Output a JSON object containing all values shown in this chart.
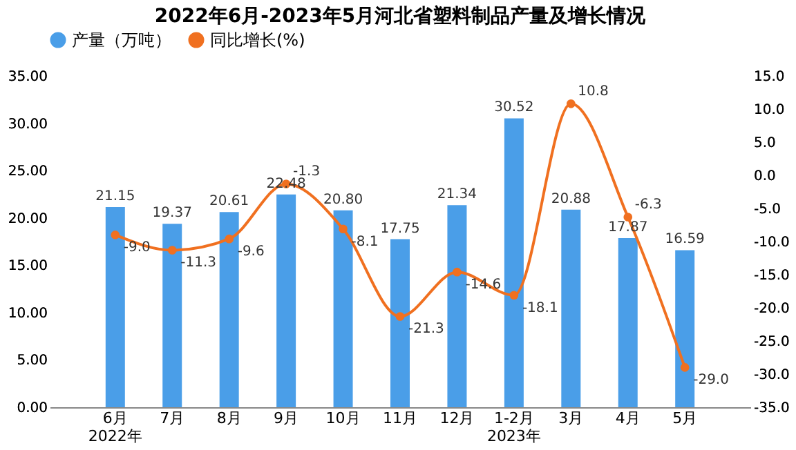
{
  "chart_data": {
    "type": "bar",
    "title": "2022年6月-2023年5月河北省塑料制品产量及增长情况",
    "categories": [
      "6月\n2022年",
      "7月",
      "8月",
      "9月",
      "10月",
      "11月",
      "12月",
      "1-2月\n2023年",
      "3月",
      "4月",
      "5月"
    ],
    "series": [
      {
        "name": "产量（万吨）",
        "color": "#4a9ee8",
        "values": [
          21.15,
          19.37,
          20.61,
          22.48,
          20.8,
          17.75,
          21.34,
          30.52,
          20.88,
          17.87,
          16.59
        ],
        "value_labels": [
          "21.15",
          "19.37",
          "20.61",
          "22.48",
          "20.80",
          "17.75",
          "21.34",
          "30.52",
          "20.88",
          "17.87",
          "16.59"
        ]
      },
      {
        "name": "同比增长(%)",
        "type": "line",
        "axis": "y2",
        "color": "#f07020",
        "values": [
          -9.0,
          -11.3,
          -9.6,
          -1.3,
          -8.1,
          -21.3,
          -14.6,
          -18.1,
          10.8,
          -6.3,
          -29.0
        ],
        "value_labels": [
          "-9.0",
          "-11.3",
          "-9.6",
          "-1.3",
          "-8.1",
          "-21.3",
          "-14.6",
          "-18.1",
          "10.8",
          "-6.3",
          "-29.0"
        ]
      }
    ],
    "ylim": [
      0,
      35
    ],
    "yticks": [
      {
        "value": 0,
        "label": "0.00"
      },
      {
        "value": 5,
        "label": "5.00"
      },
      {
        "value": 10,
        "label": "10.00"
      },
      {
        "value": 15,
        "label": "15.00"
      },
      {
        "value": 20,
        "label": "20.00"
      },
      {
        "value": 25,
        "label": "25.00"
      },
      {
        "value": 30,
        "label": "30.00"
      },
      {
        "value": 35,
        "label": "35.00"
      }
    ],
    "y2lim": [
      -35,
      15
    ],
    "y2ticks": [
      {
        "value": -35,
        "label": "-35.0"
      },
      {
        "value": -30,
        "label": "-30.0"
      },
      {
        "value": -25,
        "label": "-25.0"
      },
      {
        "value": -20,
        "label": "-20.0"
      },
      {
        "value": -15,
        "label": "-15.0"
      },
      {
        "value": -10,
        "label": "-10.0"
      },
      {
        "value": -5,
        "label": "-5.0"
      },
      {
        "value": 0,
        "label": "0.0"
      },
      {
        "value": 5,
        "label": "5.0"
      },
      {
        "value": 10,
        "label": "10.0"
      },
      {
        "value": 15,
        "label": "15.0"
      }
    ],
    "legend": "top",
    "marker": "circle"
  }
}
